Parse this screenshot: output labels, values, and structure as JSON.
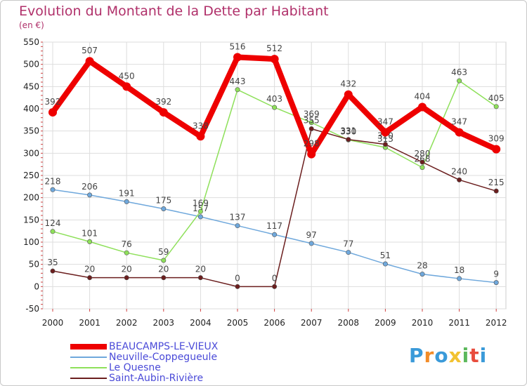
{
  "chart_data": {
    "type": "line",
    "title": "Evolution du Montant de la Dette par Habitant",
    "subtitle": "(en €)",
    "categories": [
      "2000",
      "2001",
      "2002",
      "2003",
      "2004",
      "2005",
      "2006",
      "2007",
      "2008",
      "2009",
      "2010",
      "2011",
      "2012"
    ],
    "ylim": [
      -50,
      550
    ],
    "yticks": [
      -50,
      0,
      50,
      100,
      150,
      200,
      250,
      300,
      350,
      400,
      450,
      500,
      550
    ],
    "grid": true,
    "legend_position": "bottom-left",
    "series": [
      {
        "name": "BEAUCAMPS-LE-VIEUX",
        "color": "#ee0000",
        "width": 8,
        "values": [
          392,
          507,
          450,
          392,
          338,
          516,
          512,
          298,
          432,
          347,
          404,
          347,
          309
        ],
        "labels": [
          "392",
          "507",
          "450",
          "392",
          "338",
          "516",
          "512",
          "298",
          "432",
          "347",
          "404",
          "347",
          "309"
        ]
      },
      {
        "name": "Neuville-Coppegueule",
        "color": "#6fa8dc",
        "width": 1.5,
        "values": [
          218,
          206,
          191,
          175,
          157,
          137,
          117,
          97,
          77,
          51,
          28,
          18,
          9
        ],
        "labels": [
          "218",
          "206",
          "191",
          "175",
          "157",
          "137",
          "117",
          "97",
          "77",
          "51",
          "28",
          "18",
          "9"
        ]
      },
      {
        "name": "Le Quesne",
        "color": "#8ee05a",
        "width": 1.5,
        "values": [
          124,
          101,
          76,
          59,
          169,
          443,
          403,
          369,
          330,
          313,
          268,
          463,
          405
        ],
        "labels": [
          "124",
          "101",
          "76",
          "59",
          "169",
          "443",
          "403",
          "369",
          "330",
          "313",
          "268",
          "463",
          "405"
        ]
      },
      {
        "name": "Saint-Aubin-Rivière",
        "color": "#6b1e1e",
        "width": 1.5,
        "values": [
          35,
          20,
          20,
          20,
          20,
          0,
          0,
          355,
          331,
          320,
          280,
          240,
          215
        ],
        "labels": [
          "35",
          "20",
          "20",
          "20",
          "20",
          "0",
          "0",
          "355",
          "331",
          "320",
          "280",
          "240",
          "215"
        ]
      }
    ]
  },
  "logo": {
    "letters": [
      "P",
      "r",
      "o",
      "x",
      "i",
      "t",
      "i"
    ],
    "colors": [
      "#3a9ad9",
      "#f28c28",
      "#3a9ad9",
      "#f2c230",
      "#5cb85c",
      "#e84c3d",
      "#3a9ad9"
    ]
  }
}
